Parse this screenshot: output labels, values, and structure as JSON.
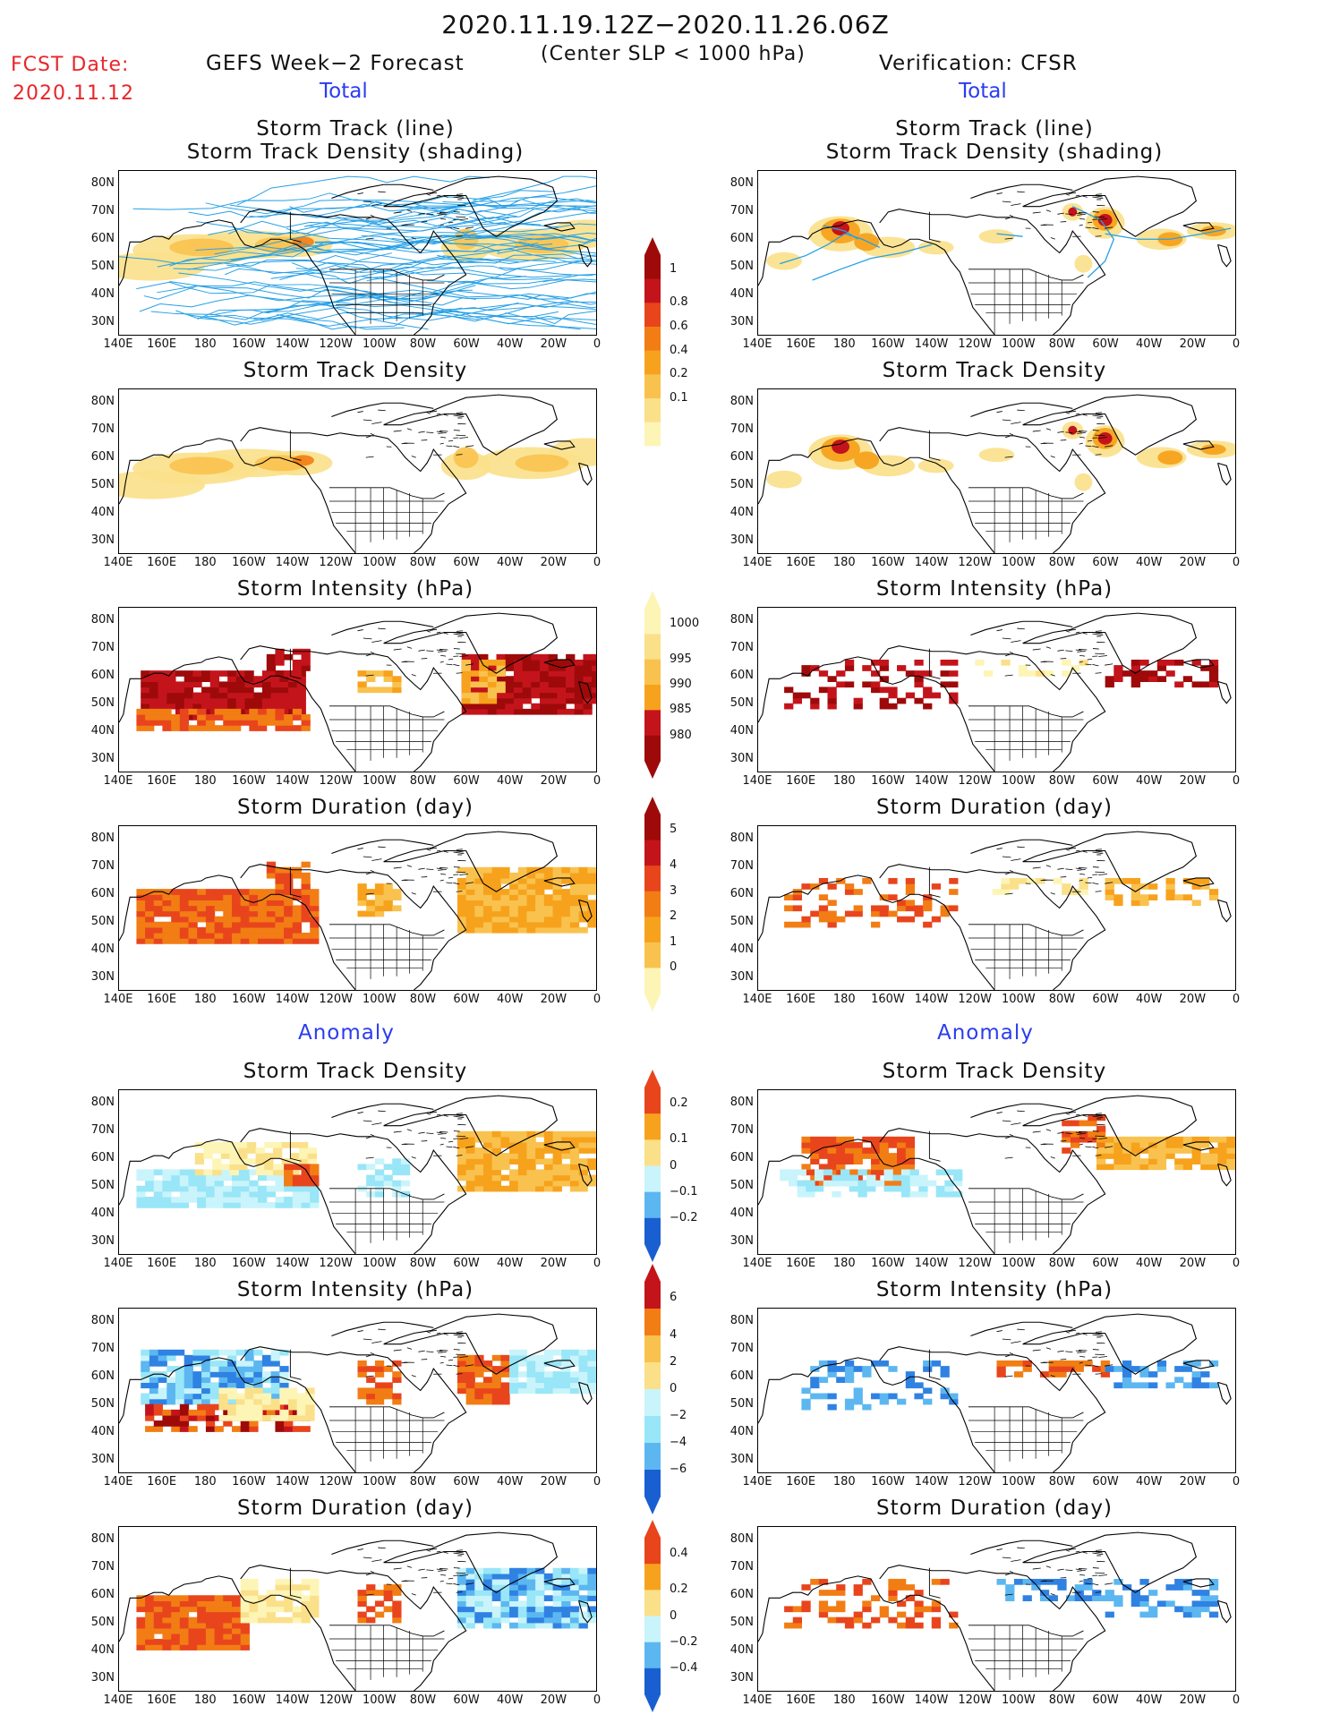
{
  "header": {
    "period": "2020.11.19.12Z−2020.11.26.06Z",
    "criterion": "(Center SLP < 1000 hPa)",
    "fcst_label": "FCST Date:",
    "fcst_date": "2020.11.12",
    "left_source": "GEFS Week−2 Forecast",
    "right_source": "Verification: CFSR",
    "total_label": "Total",
    "anomaly_label": "Anomaly"
  },
  "panel_titles": {
    "track_line": "Storm Track (line)",
    "track_shading": "Storm Track Density (shading)",
    "density": "Storm Track Density",
    "intensity": "Storm Intensity (hPa)",
    "duration": "Storm Duration (day)"
  },
  "axes": {
    "lat_ticks": [
      "80N",
      "70N",
      "60N",
      "50N",
      "40N",
      "30N"
    ],
    "lon_ticks": [
      "140E",
      "160E",
      "180",
      "160W",
      "140W",
      "120W",
      "100W",
      "80W",
      "60W",
      "40W",
      "20W",
      "0"
    ]
  },
  "colorbars": {
    "density_total": [
      "1",
      "0.8",
      "0.6",
      "0.4",
      "0.2",
      "0.1"
    ],
    "intensity_total": [
      "1000",
      "995",
      "990",
      "985",
      "980"
    ],
    "duration_total": [
      "5",
      "4",
      "3",
      "2",
      "1",
      "0"
    ],
    "density_anom": [
      "0.2",
      "0.1",
      "0",
      "−0.1",
      "−0.2"
    ],
    "intensity_anom": [
      "6",
      "4",
      "2",
      "0",
      "−2",
      "−4",
      "−6"
    ],
    "duration_anom": [
      "0.4",
      "0.2",
      "0",
      "−0.2",
      "−0.4"
    ]
  },
  "colors": {
    "warm": [
      "#fdf5b6",
      "#fbe08a",
      "#f9c24e",
      "#f7a21c",
      "#f27d14",
      "#e8451d",
      "#c4141b",
      "#9e0a0a"
    ],
    "cool": [
      "#c9f4fb",
      "#98e6f7",
      "#5cb7f1",
      "#2f82e2",
      "#1a5fd1"
    ],
    "track": "#26a0e6"
  }
}
